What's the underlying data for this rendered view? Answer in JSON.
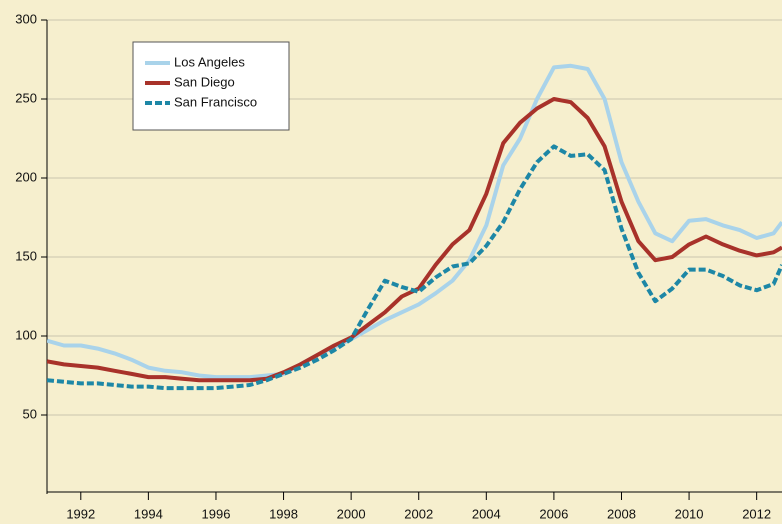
{
  "chart_data": {
    "type": "line",
    "x": [
      1991,
      1991.5,
      1992,
      1992.5,
      1993,
      1993.5,
      1994,
      1994.5,
      1995,
      1995.5,
      1996,
      1996.5,
      1997,
      1997.5,
      1998,
      1998.5,
      1999,
      1999.5,
      2000,
      2000.5,
      2001,
      2001.5,
      2002,
      2002.5,
      2003,
      2003.5,
      2004,
      2004.5,
      2005,
      2005.5,
      2006,
      2006.5,
      2007,
      2007.5,
      2008,
      2008.5,
      2009,
      2009.5,
      2010,
      2010.5,
      2011,
      2011.5,
      2012,
      2012.5,
      2012.75
    ],
    "series": [
      {
        "name": "Los Angeles",
        "color": "#a9d3ea",
        "dash": false,
        "values": [
          97,
          94,
          94,
          92,
          89,
          85,
          80,
          78,
          77,
          75,
          74,
          74,
          74,
          75,
          76,
          82,
          88,
          93,
          98,
          104,
          110,
          115,
          120,
          127,
          135,
          148,
          170,
          208,
          225,
          250,
          270,
          271,
          269,
          250,
          210,
          185,
          165,
          160,
          173,
          174,
          170,
          167,
          162,
          165,
          172
        ]
      },
      {
        "name": "San Diego",
        "color": "#a8322a",
        "dash": false,
        "values": [
          84,
          82,
          81,
          80,
          78,
          76,
          74,
          74,
          73,
          72,
          72,
          72,
          72,
          73,
          77,
          82,
          88,
          94,
          99,
          107,
          115,
          125,
          130,
          145,
          158,
          167,
          190,
          222,
          235,
          244,
          250,
          248,
          238,
          220,
          185,
          160,
          148,
          150,
          158,
          163,
          158,
          154,
          151,
          153,
          156
        ]
      },
      {
        "name": "San Francisco",
        "color": "#1d87a6",
        "dash": true,
        "values": [
          72,
          71,
          70,
          70,
          69,
          68,
          68,
          67,
          67,
          67,
          67,
          68,
          69,
          72,
          76,
          80,
          85,
          91,
          98,
          117,
          135,
          131,
          128,
          137,
          144,
          146,
          157,
          172,
          193,
          210,
          220,
          214,
          215,
          205,
          168,
          140,
          122,
          130,
          142,
          142,
          138,
          132,
          129,
          133,
          145
        ]
      }
    ],
    "xlim": [
      1991,
      2012.75
    ],
    "xticks": [
      1992,
      1994,
      1996,
      1998,
      2000,
      2002,
      2004,
      2006,
      2008,
      2010,
      2012
    ],
    "ylim": [
      0,
      300
    ],
    "yticks": [
      50,
      100,
      150,
      200,
      250,
      300
    ],
    "grid": true
  }
}
